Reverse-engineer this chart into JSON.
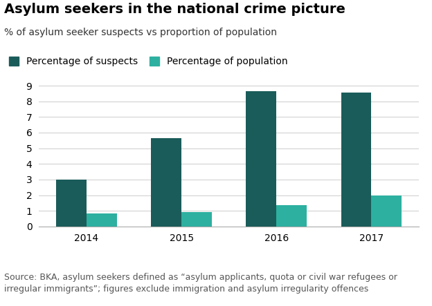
{
  "title": "Asylum seekers in the national crime picture",
  "subtitle": "% of asylum seeker suspects vs proportion of population",
  "years": [
    2014,
    2015,
    2016,
    2017
  ],
  "suspects": [
    3.0,
    5.65,
    8.65,
    8.55
  ],
  "population": [
    0.82,
    0.9,
    1.38,
    1.97
  ],
  "color_suspects": "#1a5c5a",
  "color_population": "#2db0a0",
  "ylim": [
    0,
    9
  ],
  "yticks": [
    0,
    1,
    2,
    3,
    4,
    5,
    6,
    7,
    8,
    9
  ],
  "bar_width": 0.32,
  "footnote": "Source: BKA, asylum seekers defined as “asylum applicants, quota or civil war refugees or\nirregular immigrants”; figures exclude immigration and asylum irregularity offences",
  "legend_suspects": "Percentage of suspects",
  "legend_population": "Percentage of population",
  "background_color": "#ffffff",
  "title_fontsize": 14,
  "subtitle_fontsize": 10,
  "footnote_fontsize": 9,
  "tick_fontsize": 10
}
